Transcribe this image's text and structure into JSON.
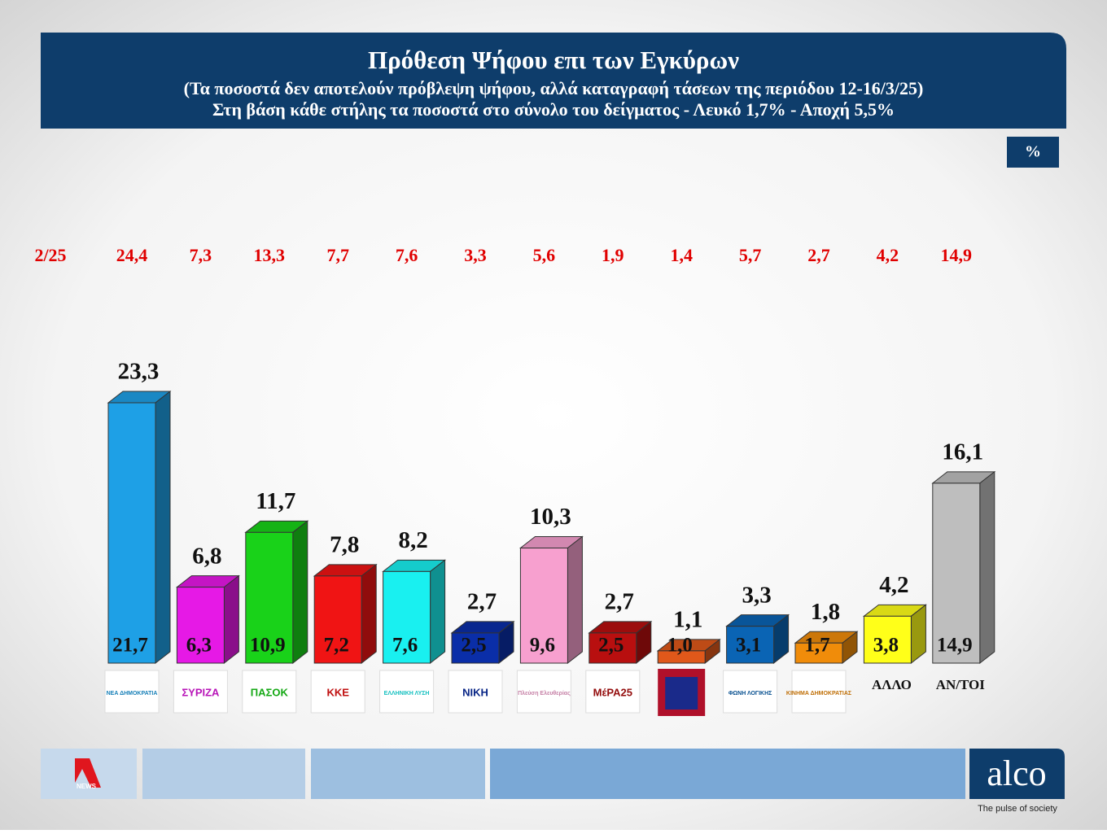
{
  "header": {
    "title": "Πρόθεση Ψήφου επι των Εγκύρων",
    "subtitle_1": "(Τα ποσοστά δεν αποτελούν πρόβλεψη ψήφου, αλλά καταγραφή τάσεων της περιόδου  12-16/3/25)",
    "subtitle_2": "Στη βάση κάθε στήλης τα ποσοστά στο σύνολο του δείγματος - Λευκό 1,7% - Αποχή 5,5%",
    "unit_badge": "%"
  },
  "chart_data": {
    "type": "bar",
    "categories": [
      "ΝΕΑ ΔΗΜΟΚΡΑΤΙΑ",
      "ΣΥΡΙΖΑ",
      "ΠΑΣΟΚ",
      "ΚΚΕ",
      "ΕΛΛΗΝΙΚΗ ΛΥΣΗ",
      "ΝΙΚΗ",
      "Πλεύση Ελευθερίας",
      "ΜέΡΑ25",
      null,
      "ΦΩΝΗ ΛΟΓΙΚΗΣ",
      "ΚΙΝΗΜΑ ΔΗΜΟΚΡΑΤΙΑΣ",
      "ΑΛΛΟ",
      "ΑΝ/ΤΟΙ"
    ],
    "values": [
      23.3,
      6.8,
      11.7,
      7.8,
      8.2,
      2.7,
      10.3,
      2.7,
      1.1,
      3.3,
      1.8,
      4.2,
      16.1
    ],
    "value_labels": [
      "23,3",
      "6,8",
      "11,7",
      "7,8",
      "8,2",
      "2,7",
      "10,3",
      "2,7",
      "1,1",
      "3,3",
      "1,8",
      "4,2",
      "16,1"
    ],
    "colors": [
      "#1ea0e6",
      "#e619e6",
      "#19d219",
      "#f01414",
      "#19f0f0",
      "#0a2ea8",
      "#f7a0cf",
      "#b80f0f",
      "#e0581a",
      "#0a64b4",
      "#f08c0a",
      "#ffff19",
      "#bebebe"
    ],
    "base_values": [
      21.7,
      6.3,
      10.9,
      7.2,
      7.6,
      2.5,
      9.6,
      2.5,
      1.0,
      3.1,
      1.7,
      3.8,
      14.9
    ],
    "base_value_labels": [
      "21,7",
      "6,3",
      "10,9",
      "7,2",
      "7,6",
      "2,5",
      "9,6",
      "2,5",
      "1,0",
      "3,1",
      "1,7",
      "3,8",
      "14,9"
    ],
    "previous_label": "2/25",
    "previous_values": [
      24.4,
      7.3,
      13.3,
      7.7,
      7.6,
      3.3,
      5.6,
      1.9,
      1.4,
      5.7,
      2.7,
      4.2,
      14.9
    ],
    "previous_value_labels": [
      "24,4",
      "7,3",
      "13,3",
      "7,7",
      "7,6",
      "3,3",
      "5,6",
      "1,9",
      "1,4",
      "5,7",
      "2,7",
      "4,2",
      "14,9"
    ]
  },
  "footer": {
    "news_logo": "NEWS",
    "brand": "alco",
    "tagline": "The pulse of society"
  }
}
